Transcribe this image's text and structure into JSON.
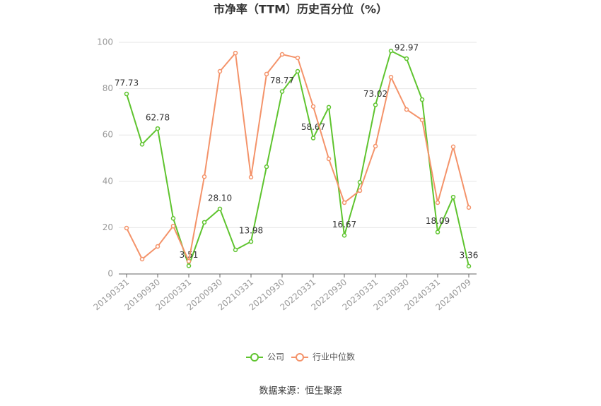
{
  "chart_data": {
    "type": "line",
    "title": "市净率（TTM）历史百分位（%）",
    "categories": [
      "20190331",
      null,
      "20190930",
      null,
      "20200331",
      null,
      "20200930",
      null,
      "20210331",
      null,
      "20210930",
      null,
      "20220331",
      null,
      "20220930",
      null,
      "20230331",
      null,
      "20230930",
      null,
      "20240331",
      null,
      "20240709"
    ],
    "series": [
      {
        "name": "公司",
        "color": "#5fc42f",
        "values": [
          77.73,
          56,
          62.78,
          24,
          3.51,
          22.3,
          28.1,
          10.4,
          13.98,
          46.3,
          78.77,
          87.5,
          58.67,
          72,
          16.67,
          39.6,
          73.02,
          96.3,
          92.97,
          75.3,
          18.09,
          33.2,
          3.36
        ],
        "value_labels": [
          "77.73",
          null,
          "62.78",
          null,
          "3.51",
          null,
          "28.10",
          null,
          "13.98",
          null,
          "78.77",
          null,
          "58.67",
          null,
          "16.67",
          null,
          "73.02",
          null,
          "92.97",
          null,
          "18.09",
          null,
          "3.36"
        ]
      },
      {
        "name": "行业中位数",
        "color": "#f4936a",
        "values": [
          19.8,
          6.4,
          11.9,
          20.7,
          5.5,
          42,
          87.5,
          95.4,
          41.8,
          86.3,
          94.8,
          93.3,
          72.3,
          49.7,
          30.8,
          36,
          55.2,
          85,
          71,
          66.5,
          30.8,
          54.9,
          28.7
        ]
      }
    ],
    "ylim": [
      0,
      100
    ],
    "yticks": [
      0,
      20,
      40,
      60,
      80,
      100
    ],
    "grid": true,
    "legend": "bottom",
    "source": "数据来源：恒生聚源"
  }
}
